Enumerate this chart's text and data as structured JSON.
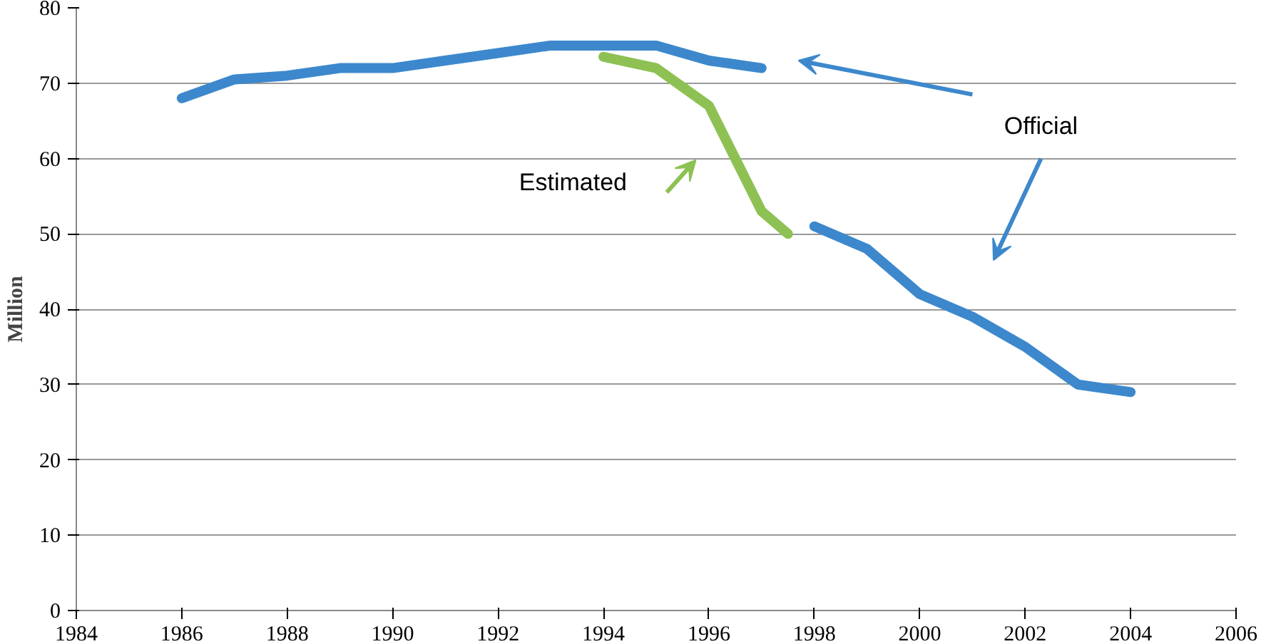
{
  "chart_data": {
    "type": "line",
    "ylabel": "Million",
    "series": [
      {
        "name": "Official",
        "color": "#3d88cc",
        "x": [
          1986,
          1987,
          1988,
          1989,
          1990,
          1991,
          1992,
          1993,
          1994,
          1995,
          1996,
          1997,
          1997.5,
          1998,
          1999,
          2000,
          2001,
          2002,
          2003,
          2004
        ],
        "values": [
          68,
          70.5,
          71,
          72,
          72,
          73,
          74,
          75,
          75,
          75,
          73,
          72,
          null,
          51,
          48,
          42,
          39,
          35,
          30,
          29
        ]
      },
      {
        "name": "Estimated",
        "color": "#8dc153",
        "x": [
          1994,
          1995,
          1996,
          1996.5,
          1997,
          1997.5
        ],
        "values": [
          73.5,
          72,
          67,
          60,
          53,
          50
        ]
      }
    ],
    "xlim": [
      1984,
      2006
    ],
    "xticks": [
      1984,
      1986,
      1988,
      1990,
      1992,
      1994,
      1996,
      1998,
      2000,
      2002,
      2004,
      2006
    ],
    "ylim": [
      0,
      80
    ],
    "yticks": [
      0,
      10,
      20,
      30,
      40,
      50,
      60,
      70,
      80
    ],
    "grid": "y",
    "line_style": "solid",
    "marker": "none"
  }
}
